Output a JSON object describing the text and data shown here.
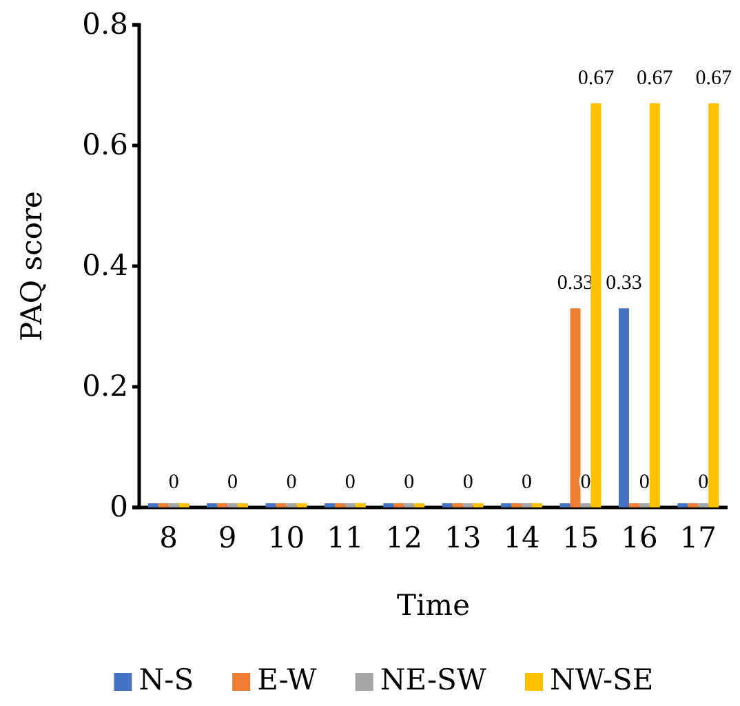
{
  "chart_data": {
    "type": "bar",
    "xlabel": "Time",
    "ylabel": "PAQ score",
    "categories": [
      "8",
      "9",
      "10",
      "11",
      "12",
      "13",
      "14",
      "15",
      "16",
      "17"
    ],
    "series": [
      {
        "name": "N-S",
        "color": "#4472c4",
        "values": [
          0,
          0,
          0,
          0,
          0,
          0,
          0,
          0,
          0.33,
          0
        ],
        "value_labels": [
          null,
          null,
          null,
          null,
          null,
          null,
          null,
          null,
          "0.33",
          null
        ]
      },
      {
        "name": "E-W",
        "color": "#ed7d31",
        "values": [
          0,
          0,
          0,
          0,
          0,
          0,
          0,
          0.33,
          0,
          0
        ],
        "value_labels": [
          null,
          null,
          null,
          null,
          null,
          null,
          null,
          "0.33",
          null,
          null
        ]
      },
      {
        "name": "NE-SW",
        "color": "#a5a5a5",
        "values": [
          0,
          0,
          0,
          0,
          0,
          0,
          0,
          0,
          0,
          0
        ],
        "value_labels": [
          "0",
          "0",
          "0",
          "0",
          "0",
          "0",
          "0",
          "0",
          "0",
          "0"
        ]
      },
      {
        "name": "NW-SE",
        "color": "#ffc000",
        "values": [
          0,
          0,
          0,
          0,
          0,
          0,
          0,
          0.67,
          0.67,
          0.67
        ],
        "value_labels": [
          null,
          null,
          null,
          null,
          null,
          null,
          null,
          "0.67",
          "0.67",
          "0.67"
        ]
      }
    ],
    "ylim": [
      0,
      0.8
    ],
    "yticks": [
      {
        "value": 0,
        "label": "0"
      },
      0.2,
      0.4,
      0.6,
      0.8
    ],
    "grid": false,
    "legend": "bottom"
  }
}
